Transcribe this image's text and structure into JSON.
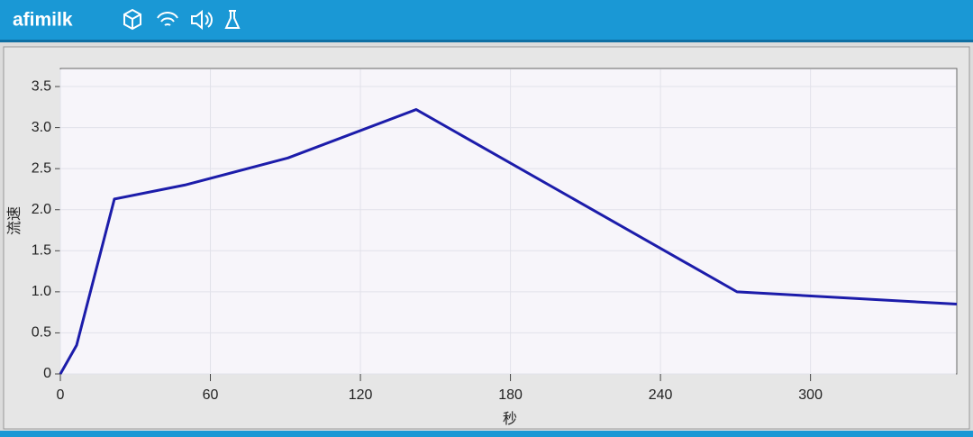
{
  "header": {
    "logo": "afimilk"
  },
  "chart_data": {
    "type": "line",
    "x_label": "秒",
    "y_label": "流速",
    "x": [
      0,
      6.5,
      21.6,
      49.7,
      91,
      142.3,
      270.6,
      358.5
    ],
    "values": [
      0,
      0.35,
      2.13,
      2.3,
      2.63,
      3.22,
      1.0,
      0.85
    ],
    "color": "#1c1caa",
    "xlim": [
      0,
      358.5
    ],
    "ylim": [
      0,
      3.72
    ],
    "xticks": [
      0,
      60,
      120,
      180,
      240,
      300
    ],
    "yticks": [
      0,
      0.5,
      {
        "value": 1,
        "label": "1.0"
      },
      1.5,
      {
        "value": 2,
        "label": "2.0"
      },
      2.5,
      {
        "value": 3,
        "label": "3.0"
      },
      3.5
    ],
    "grid": true
  }
}
